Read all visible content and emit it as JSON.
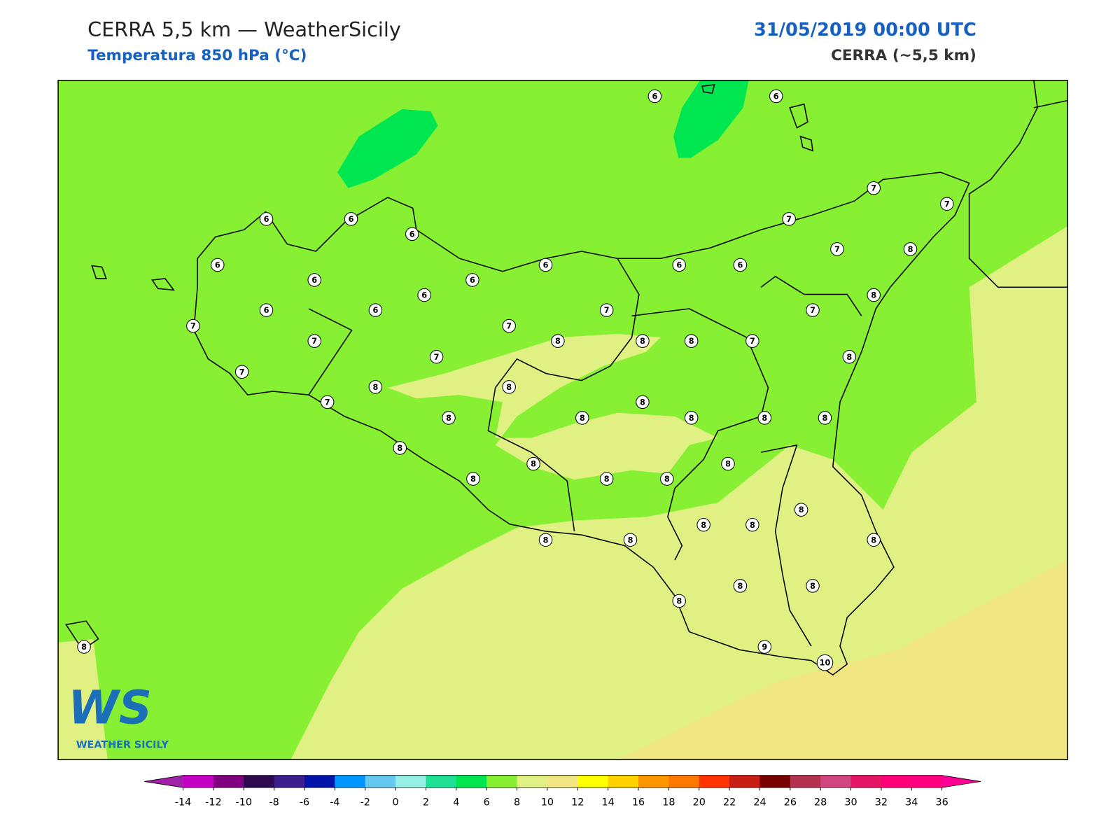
{
  "header": {
    "title": "CERRA 5,5 km — WeatherSicily",
    "subtitle": "Temperatura 850 hPa (°C)",
    "datetime": "31/05/2019 00:00 UTC",
    "model": "CERRA (~5,5 km)"
  },
  "stations": [
    6,
    6,
    6,
    6,
    6,
    6,
    7,
    7,
    7,
    7,
    8,
    6,
    6,
    6,
    6,
    6,
    6,
    6,
    6,
    7,
    7,
    7,
    8,
    7,
    7,
    8,
    8,
    8,
    7,
    7,
    7,
    8,
    8,
    8,
    7,
    8,
    8,
    8,
    8,
    8,
    8,
    8,
    8,
    8,
    8,
    8,
    8,
    8,
    8,
    8,
    8,
    8,
    8,
    8,
    8,
    8,
    8,
    9,
    10
  ],
  "colorbar": {
    "ticks": [
      -14,
      -12,
      -10,
      -8,
      -6,
      -4,
      -2,
      0,
      2,
      4,
      6,
      8,
      10,
      12,
      14,
      16,
      18,
      20,
      22,
      24,
      26,
      28,
      30,
      32,
      34,
      36
    ],
    "colors": [
      "#c400c4",
      "#800080",
      "#2d0a4e",
      "#3c1e8c",
      "#0014aa",
      "#0096ff",
      "#64c8f0",
      "#96f0e6",
      "#1ee196",
      "#00e650",
      "#87f032",
      "#e1f082",
      "#f0e682",
      "#ffff00",
      "#ffd200",
      "#ff9600",
      "#ff7800",
      "#ff3200",
      "#c81e14",
      "#780000",
      "#b43250",
      "#d2467f",
      "#e61464",
      "#ff0078",
      "#ff0080"
    ],
    "extend_low": "#a020a8",
    "extend_high": "#ff0096"
  },
  "logo": {
    "mark": "WS",
    "text": "WEATHER SICILY"
  }
}
